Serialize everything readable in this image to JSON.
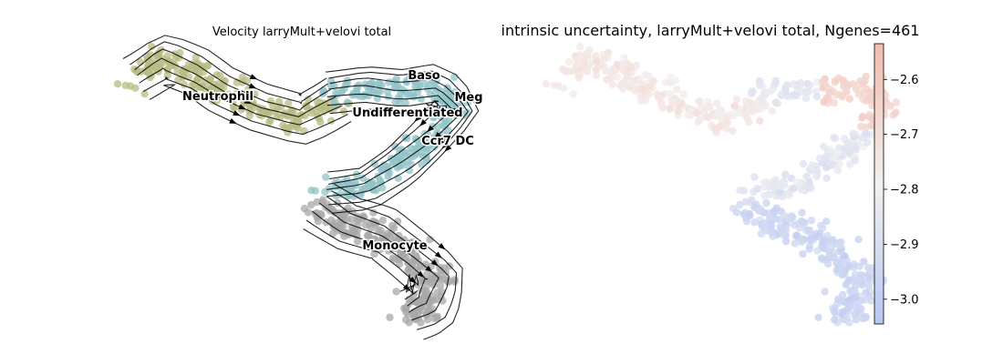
{
  "chart_data": [
    {
      "type": "scatter",
      "subtype": "umap-embedding-with-velocity-streamlines",
      "title": "Velocity larryMult+velovi total",
      "axes_visible": false,
      "grid": false,
      "legend": "on-data",
      "clusters": [
        {
          "name": "Neutrophil",
          "color": "#b8bb83"
        },
        {
          "name": "Baso",
          "color": "#92c3c8"
        },
        {
          "name": "Meg",
          "color": "#92c3c8"
        },
        {
          "name": "Undifferentiated",
          "color": "#92c3c8"
        },
        {
          "name": "Ccr7 DC",
          "color": "#92c3c8"
        },
        {
          "name": "Monocyte",
          "color": "#a8a8a8"
        }
      ],
      "streamline_color": "#000000"
    },
    {
      "type": "scatter",
      "subtype": "umap-embedding-colored-by-value",
      "title": "intrinsic uncertainty, larryMult+velovi total, Ngenes=461",
      "axes_visible": false,
      "grid": false,
      "colormap": "coolwarm",
      "colorbar": {
        "position": "right",
        "range": [
          -3.045,
          -2.535
        ],
        "ticks": [
          -2.6,
          -2.7,
          -2.8,
          -2.9,
          -3.0
        ],
        "tick_labels": [
          "−2.6",
          "−2.7",
          "−2.8",
          "−2.9",
          "−3.0"
        ],
        "color_low": "#b7c7f2",
        "color_mid": "#f2f0ef",
        "color_high": "#f1bcae"
      }
    }
  ]
}
